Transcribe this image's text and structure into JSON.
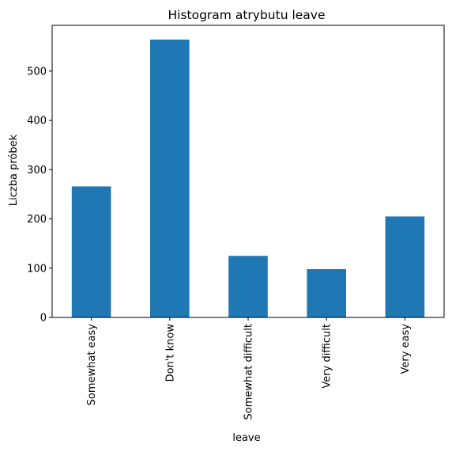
{
  "chart_data": {
    "type": "bar",
    "title": "Histogram atrybutu leave",
    "xlabel": "leave",
    "ylabel": "Liczba próbek",
    "categories": [
      "Somewhat easy",
      "Don't know",
      "Somewhat difficult",
      "Very difficult",
      "Very easy"
    ],
    "values": [
      266,
      564,
      125,
      98,
      205
    ],
    "ylim": [
      0,
      593
    ],
    "yticks": [
      0,
      100,
      200,
      300,
      400,
      500
    ],
    "bar_color": "#1f77b4",
    "grid": false,
    "legend": "none"
  }
}
